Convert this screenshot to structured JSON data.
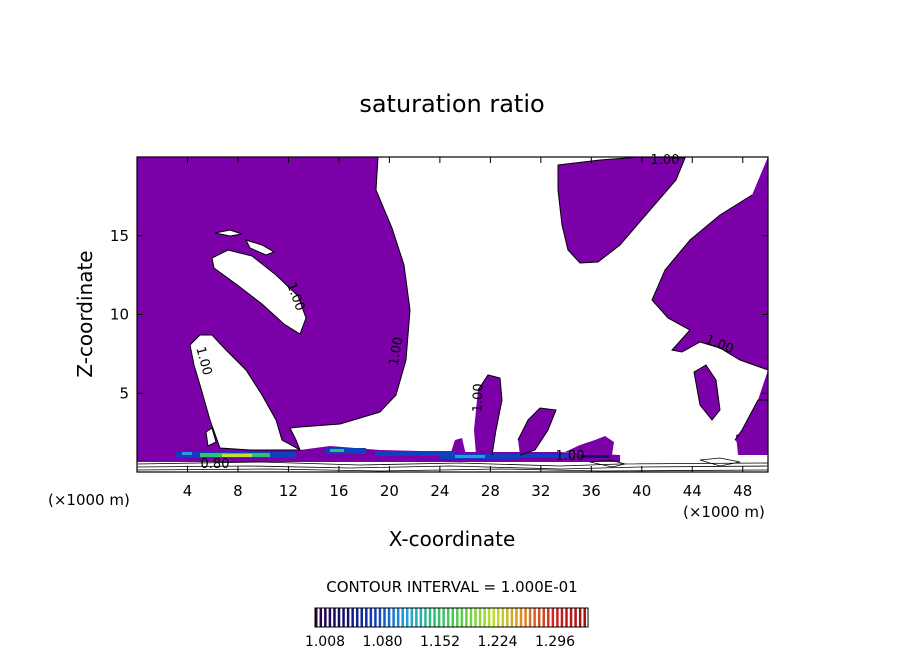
{
  "chart_data": {
    "type": "contour",
    "title": "saturation ratio",
    "xlabel": "X-coordinate",
    "ylabel": "Z-coordinate",
    "x_unit": "(×1000 m)",
    "y_unit": "(×1000 m)",
    "xlim": [
      0,
      50
    ],
    "ylim": [
      0,
      20
    ],
    "x_ticks": [
      4,
      8,
      12,
      16,
      20,
      24,
      28,
      32,
      36,
      40,
      44,
      48
    ],
    "y_ticks": [
      5,
      10,
      15
    ],
    "contour_interval_text": "CONTOUR INTERVAL = 1.000E-01",
    "contour_labels": [
      "1.00",
      "1.00",
      "1.00",
      "1.00",
      "1.00",
      "1.00",
      "1.00",
      "0.80"
    ],
    "colorbar": {
      "tick_labels": [
        "1.008",
        "1.080",
        "1.152",
        "1.224",
        "1.296"
      ],
      "colors": [
        "#2b0040",
        "#101070",
        "#1040c0",
        "#20a0e0",
        "#30c070",
        "#60d040",
        "#c0e030",
        "#e08020",
        "#d02020",
        "#a01010"
      ]
    },
    "fill_color": "#7b00a8"
  }
}
